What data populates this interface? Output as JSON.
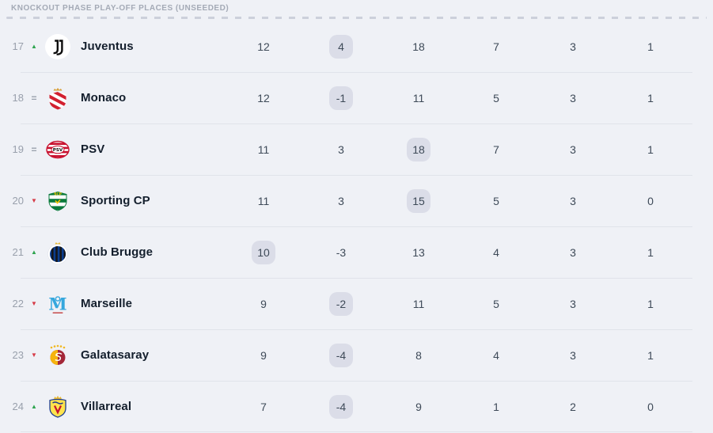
{
  "header": {
    "title": "KNOCKOUT PHASE PLAY-OFF PLACES (UNSEEDED)"
  },
  "colors": {
    "background": "#eff1f6",
    "divider": "#e0e3ea",
    "highlight_pill": "#dbdde8",
    "movement_up": "#2da44e",
    "movement_down": "#d63b47",
    "movement_same": "#9aa1ad",
    "stat_text": "#3e4a58",
    "club_text": "#141f2d"
  },
  "table": {
    "rows": [
      {
        "pos": "17",
        "movement": "up",
        "movement_icon": "up-arrow-icon",
        "crest": "juventus",
        "club": "Juventus",
        "stats": [
          "12",
          "4",
          "18",
          "7",
          "3",
          "1"
        ],
        "highlighted_stat": 1
      },
      {
        "pos": "18",
        "movement": "same",
        "movement_icon": "equals-icon",
        "crest": "monaco",
        "club": "Monaco",
        "stats": [
          "12",
          "-1",
          "11",
          "5",
          "3",
          "1"
        ],
        "highlighted_stat": 1
      },
      {
        "pos": "19",
        "movement": "same",
        "movement_icon": "equals-icon",
        "crest": "psv",
        "club": "PSV",
        "stats": [
          "11",
          "3",
          "18",
          "7",
          "3",
          "1"
        ],
        "highlighted_stat": 2
      },
      {
        "pos": "20",
        "movement": "down",
        "movement_icon": "down-arrow-icon",
        "crest": "sporting",
        "club": "Sporting CP",
        "stats": [
          "11",
          "3",
          "15",
          "5",
          "3",
          "0"
        ],
        "highlighted_stat": 2
      },
      {
        "pos": "21",
        "movement": "up",
        "movement_icon": "up-arrow-icon",
        "crest": "club-brugge",
        "club": "Club Brugge",
        "stats": [
          "10",
          "-3",
          "13",
          "4",
          "3",
          "1"
        ],
        "highlighted_stat": 0
      },
      {
        "pos": "22",
        "movement": "down",
        "movement_icon": "down-arrow-icon",
        "crest": "marseille",
        "club": "Marseille",
        "stats": [
          "9",
          "-2",
          "11",
          "5",
          "3",
          "1"
        ],
        "highlighted_stat": 1
      },
      {
        "pos": "23",
        "movement": "down",
        "movement_icon": "down-arrow-icon",
        "crest": "galatasaray",
        "club": "Galatasaray",
        "stats": [
          "9",
          "-4",
          "8",
          "4",
          "3",
          "1"
        ],
        "highlighted_stat": 1
      },
      {
        "pos": "24",
        "movement": "up",
        "movement_icon": "up-arrow-icon",
        "crest": "villarreal",
        "club": "Villarreal",
        "stats": [
          "7",
          "-4",
          "9",
          "1",
          "2",
          "0"
        ],
        "highlighted_stat": 1
      }
    ]
  }
}
